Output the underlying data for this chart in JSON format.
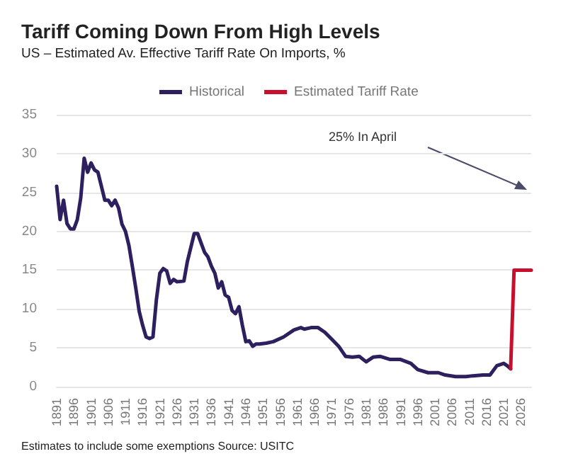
{
  "chart_data": {
    "type": "line",
    "title": "Tariff Coming Down From High Levels",
    "subtitle": "US – Estimated Av. Effective Tariff Rate On Imports, %",
    "annotations": [
      "25% In April",
      "Estimates to include some exemptions Source: USITC"
    ],
    "series": [
      {
        "name": "Historical",
        "color": "#2e1f5e",
        "x": [
          1891,
          1892,
          1893,
          1894,
          1895,
          1896,
          1897,
          1898,
          1899,
          1900,
          1901,
          1902,
          1903,
          1904,
          1905,
          1906,
          1907,
          1908,
          1909,
          1910,
          1911,
          1912,
          1913,
          1914,
          1915,
          1916,
          1917,
          1918,
          1919,
          1920,
          1921,
          1922,
          1923,
          1924,
          1925,
          1926,
          1928,
          1929,
          1930,
          1931,
          1932,
          1933,
          1934,
          1935,
          1936,
          1937,
          1938,
          1939,
          1940,
          1941,
          1942,
          1943,
          1944,
          1945,
          1946,
          1947,
          1948,
          1949,
          1950,
          1952,
          1954,
          1957,
          1960,
          1962,
          1963,
          1965,
          1967,
          1969,
          1971,
          1973,
          1975,
          1977,
          1979,
          1981,
          1983,
          1985,
          1988,
          1991,
          1994,
          1996,
          1999,
          2002,
          2004,
          2007,
          2010,
          2012,
          2015,
          2017,
          2019,
          2021,
          2022,
          2023
        ],
        "values": [
          25.8,
          21.5,
          24,
          21,
          20.3,
          20.3,
          21.5,
          24.3,
          29.4,
          27.6,
          28.8,
          27.9,
          27.6,
          25.8,
          24,
          24,
          23.3,
          24,
          23,
          20.9,
          20,
          18.2,
          15.5,
          12.7,
          9.7,
          7.9,
          6.4,
          6.2,
          6.4,
          11.2,
          14.6,
          15.2,
          14.9,
          13.3,
          13.8,
          13.5,
          13.6,
          16.1,
          17.9,
          19.7,
          19.7,
          18.5,
          17.3,
          16.7,
          15.5,
          14.6,
          12.7,
          13.5,
          11.8,
          11.5,
          9.8,
          9.4,
          10.3,
          7.9,
          5.8,
          5.9,
          5.2,
          5.5,
          5.5,
          5.6,
          5.8,
          6.4,
          7.3,
          7.6,
          7.4,
          7.6,
          7.6,
          7,
          6.1,
          5.2,
          3.9,
          3.8,
          3.9,
          3.2,
          3.8,
          3.9,
          3.5,
          3.5,
          3,
          2.2,
          1.8,
          1.8,
          1.5,
          1.3,
          1.3,
          1.4,
          1.5,
          1.5,
          2.7,
          3,
          2.7,
          2.3
        ]
      },
      {
        "name": "Estimated Tariff Rate",
        "color": "#c8102e",
        "x": [
          2023,
          2024,
          2029
        ],
        "values": [
          2.3,
          15,
          15
        ]
      }
    ],
    "xlim": [
      1891,
      2029
    ],
    "xticks": [
      1891,
      1896,
      1901,
      1906,
      1911,
      1916,
      1921,
      1926,
      1931,
      1936,
      1941,
      1946,
      1951,
      1956,
      1961,
      1966,
      1971,
      1976,
      1981,
      1986,
      1991,
      1996,
      2001,
      2006,
      2011,
      2016,
      2021,
      2026
    ],
    "ylim": [
      0,
      35
    ],
    "yticks": [
      0,
      5,
      10,
      15,
      20,
      25,
      30,
      35
    ],
    "grid": "y",
    "legend": "top",
    "marker": "none",
    "line_style": "solid"
  }
}
